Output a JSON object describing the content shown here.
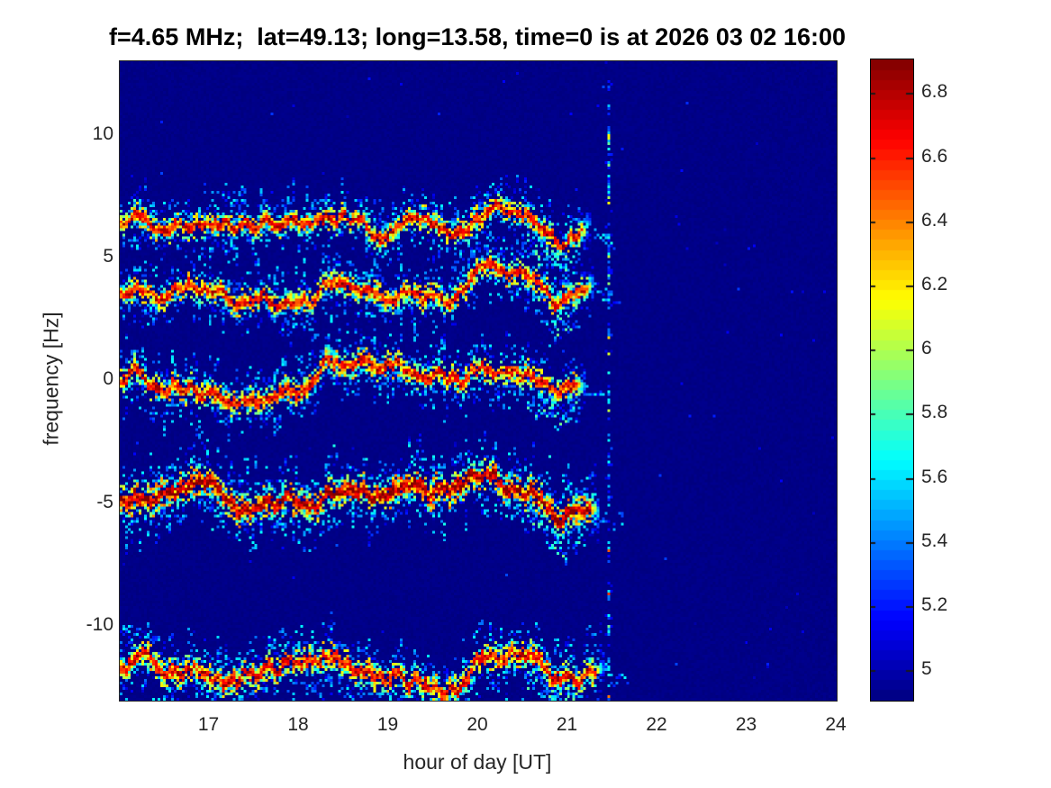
{
  "chart_data": {
    "type": "heatmap",
    "subtype": "doppler-spectrogram",
    "title": "f=4.65 MHz;  lat=49.13; long=13.58, time=0 is at 2026 03 02 16:00",
    "xlabel": "hour of day [UT]",
    "ylabel": "frequency [Hz]",
    "xlim": [
      16,
      24
    ],
    "ylim": [
      -13.05,
      13.0
    ],
    "x_ticks": [
      17,
      18,
      19,
      20,
      21,
      22,
      23,
      24
    ],
    "y_ticks": [
      10,
      5,
      0,
      -5,
      -10
    ],
    "grid": false,
    "colormap": "jet",
    "background_value": 4.92,
    "colorbar": {
      "position": "right",
      "range": [
        4.905,
        6.905
      ],
      "ticks": [
        6.8,
        6.6,
        6.4,
        6.2,
        6.0,
        5.8,
        5.6,
        5.4,
        5.2,
        5.0
      ],
      "tick_labels": [
        "6.8",
        "6.6",
        "6.4",
        "6.2",
        "6",
        "5.8",
        "5.6",
        "5.4",
        "5.2",
        "5"
      ]
    },
    "bins": {
      "nx": 266,
      "ny": 237
    },
    "shared_wiggle": {
      "harmonics": [
        {
          "period": 1.7,
          "amp": 0.18,
          "phase": 2.0
        },
        {
          "period": 0.8,
          "amp": 0.14,
          "phase": 0.7
        },
        {
          "period": 0.42,
          "amp": 0.09,
          "phase": 3.9
        },
        {
          "period": 0.21,
          "amp": 0.05,
          "phase": 1.3
        }
      ],
      "dip": {
        "time": 20.87,
        "width": 0.14,
        "depth": 1.0
      }
    },
    "traces": [
      {
        "name": "trace-plus-6.6Hz",
        "center_hz": 6.6,
        "start": 16.0,
        "end": 21.25,
        "amp_scale": 1.0,
        "width_scale": 1.0,
        "intensity": 1.0,
        "dip_scale": 1.0,
        "seed": 11
      },
      {
        "name": "trace-plus-3.7Hz",
        "center_hz": 3.7,
        "start": 16.0,
        "end": 21.3,
        "amp_scale": 0.9,
        "width_scale": 1.0,
        "intensity": 1.0,
        "dip_scale": 0.9,
        "seed": 22
      },
      {
        "name": "trace-0Hz",
        "center_hz": 0.05,
        "start": 16.0,
        "end": 21.2,
        "amp_scale": 1.0,
        "width_scale": 1.05,
        "intensity": 1.0,
        "dip_scale": 1.0,
        "seed": 33
      },
      {
        "name": "trace-minus-4.8Hz",
        "center_hz": -4.8,
        "start": 16.0,
        "end": 21.35,
        "amp_scale": 1.1,
        "width_scale": 1.25,
        "intensity": 1.08,
        "dip_scale": 1.1,
        "seed": 44
      },
      {
        "name": "trace-minus-11.6Hz",
        "center_hz": -11.6,
        "start": 16.0,
        "end": 21.4,
        "amp_scale": 1.25,
        "width_scale": 1.15,
        "intensity": 1.0,
        "dip_scale": 1.3,
        "seed": 55
      }
    ],
    "vertical_line": {
      "time": 21.46,
      "style": "speckled-column"
    }
  }
}
